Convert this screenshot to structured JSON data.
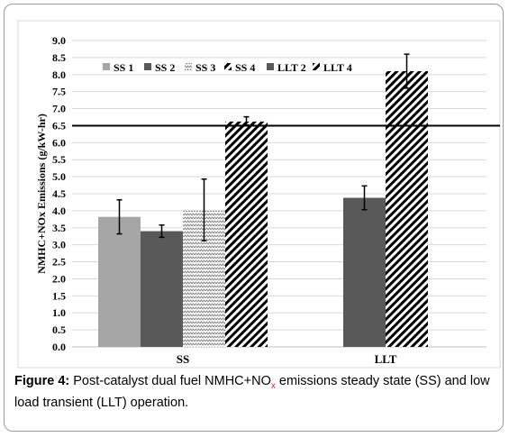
{
  "chart_data": {
    "type": "bar",
    "ylabel": "NMHC+NOx Emissions (g/kW-hr)",
    "ylim": [
      0,
      9
    ],
    "ytick_step": 0.5,
    "yticks": [
      "0.0",
      "0.5",
      "1.0",
      "1.5",
      "2.0",
      "2.5",
      "3.0",
      "3.5",
      "4.0",
      "4.5",
      "5.0",
      "5.5",
      "6.0",
      "6.5",
      "7.0",
      "7.5",
      "8.0",
      "8.5",
      "9.0"
    ],
    "reference_line": 6.5,
    "legend_position": "top-left",
    "groups": [
      {
        "label": "SS",
        "bars": [
          {
            "series": "SS 1",
            "value": 3.82,
            "err_low": 0.5,
            "err_high": 0.5
          },
          {
            "series": "SS 2",
            "value": 3.4,
            "err_low": 0.18,
            "err_high": 0.18
          },
          {
            "series": "SS 3",
            "value": 4.0,
            "err_low": 0.88,
            "err_high": 0.93
          },
          {
            "series": "SS 4",
            "value": 6.62,
            "err_low": 0.1,
            "err_high": 0.14
          }
        ]
      },
      {
        "label": "LLT",
        "bars": [
          {
            "series": "LLT 2",
            "value": 4.38,
            "err_low": 0.35,
            "err_high": 0.35
          },
          {
            "series": "LLT 4",
            "value": 8.1,
            "err_low": 0.5,
            "err_high": 0.5
          }
        ]
      }
    ],
    "series": [
      {
        "name": "SS 1",
        "fill": "#a6a6a6",
        "pattern": "solid"
      },
      {
        "name": "SS 2",
        "fill": "#595959",
        "pattern": "solid"
      },
      {
        "name": "SS 3",
        "fill": "#7f7f7f",
        "pattern": "zigzag"
      },
      {
        "name": "SS 4",
        "fill": "#000000",
        "pattern": "diagonal"
      },
      {
        "name": "LLT 2",
        "fill": "#595959",
        "pattern": "solid"
      },
      {
        "name": "LLT 4",
        "fill": "#000000",
        "pattern": "diagonal"
      }
    ]
  },
  "caption": {
    "label": "Figure 4:",
    "text_a": " Post-catalyst dual fuel NMHC+NO",
    "sub": "x",
    "text_b": " emissions steady state (SS) and low load transient (LLT) operation."
  }
}
